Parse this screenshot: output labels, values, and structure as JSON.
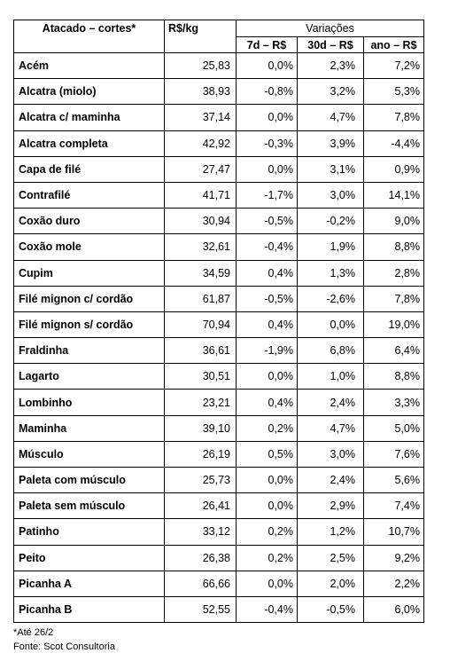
{
  "headers": {
    "cut": "Atacado – cortes*",
    "price": "R$/kg",
    "variations": "Variações",
    "d7": "7d – R$",
    "d30": "30d – R$",
    "year": "ano – R$"
  },
  "rows": [
    {
      "name": "Acém",
      "price": "25,83",
      "d7": "0,0%",
      "d30": "2,3%",
      "year": "7,2%"
    },
    {
      "name": "Alcatra (miolo)",
      "price": "38,93",
      "d7": "-0,8%",
      "d30": "3,2%",
      "year": "5,3%"
    },
    {
      "name": "Alcatra c/ maminha",
      "price": "37,14",
      "d7": "0,0%",
      "d30": "4,7%",
      "year": "7,8%"
    },
    {
      "name": "Alcatra completa",
      "price": "42,92",
      "d7": "-0,3%",
      "d30": "3,9%",
      "year": "-4,4%"
    },
    {
      "name": "Capa de filé",
      "price": "27,47",
      "d7": "0,0%",
      "d30": "3,1%",
      "year": "0,9%"
    },
    {
      "name": "Contrafilé",
      "price": "41,71",
      "d7": "-1,7%",
      "d30": "3,0%",
      "year": "14,1%"
    },
    {
      "name": "Coxão duro",
      "price": "30,94",
      "d7": "-0,5%",
      "d30": "-0,2%",
      "year": "9,0%"
    },
    {
      "name": "Coxão mole",
      "price": "32,61",
      "d7": "-0,4%",
      "d30": "1,9%",
      "year": "8,8%"
    },
    {
      "name": "Cupim",
      "price": "34,59",
      "d7": "0,4%",
      "d30": "1,3%",
      "year": "2,8%"
    },
    {
      "name": "Filé mignon c/ cordão",
      "price": "61,87",
      "d7": "-0,5%",
      "d30": "-2,6%",
      "year": "7,8%"
    },
    {
      "name": "Filé mignon s/ cordão",
      "price": "70,94",
      "d7": "0,4%",
      "d30": "0,0%",
      "year": "19,0%"
    },
    {
      "name": "Fraldinha",
      "price": "36,61",
      "d7": "-1,9%",
      "d30": "6,8%",
      "year": "6,4%"
    },
    {
      "name": "Lagarto",
      "price": "30,51",
      "d7": "0,0%",
      "d30": "1,0%",
      "year": "8,8%"
    },
    {
      "name": "Lombinho",
      "price": "23,21",
      "d7": "0,4%",
      "d30": "2,4%",
      "year": "3,3%"
    },
    {
      "name": "Maminha",
      "price": "39,10",
      "d7": "0,2%",
      "d30": "4,7%",
      "year": "5,0%"
    },
    {
      "name": "Músculo",
      "price": "26,19",
      "d7": "0,5%",
      "d30": "3,0%",
      "year": "7,6%"
    },
    {
      "name": "Paleta com músculo",
      "price": "25,73",
      "d7": "0,0%",
      "d30": "2,4%",
      "year": "5,6%"
    },
    {
      "name": "Paleta sem músculo",
      "price": "26,41",
      "d7": "0,0%",
      "d30": "2,9%",
      "year": "7,4%"
    },
    {
      "name": "Patinho",
      "price": "33,12",
      "d7": "0,2%",
      "d30": "1,2%",
      "year": "10,7%"
    },
    {
      "name": "Peito",
      "price": "26,38",
      "d7": "0,2%",
      "d30": "2,5%",
      "year": "9,2%"
    },
    {
      "name": "Picanha A",
      "price": "66,66",
      "d7": "0,0%",
      "d30": "2,0%",
      "year": "2,2%"
    },
    {
      "name": "Picanha B",
      "price": "52,55",
      "d7": "-0,4%",
      "d30": "-0,5%",
      "year": "6,0%"
    }
  ],
  "notes": {
    "footnote": "*Até 26/2",
    "source": "Fonte: Scot Consultoria"
  }
}
